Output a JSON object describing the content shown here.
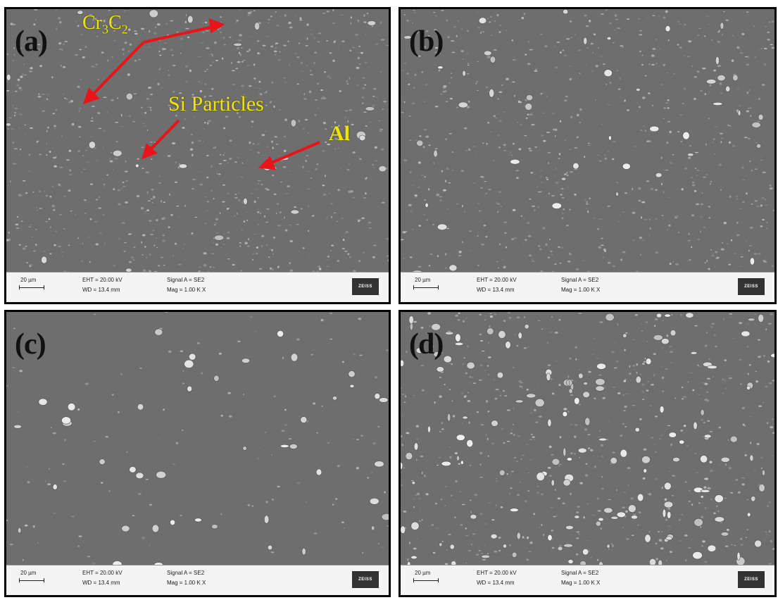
{
  "panels": [
    {
      "id": "a",
      "label": "(a)",
      "annotations": {
        "cr3c2_main": "Cr",
        "cr3c2_sub1": "3",
        "cr3c2_c": "C",
        "cr3c2_sub2": "2",
        "si": "Si Particles",
        "al": "Al"
      },
      "info": {
        "scale": "20 µm",
        "eht": "EHT = 20.00 kV",
        "wd": "WD = 13.4 mm",
        "signal": "Signal A = SE2",
        "mag": "Mag =    1.00 K X",
        "logo": "ZEISS"
      }
    },
    {
      "id": "b",
      "label": "(b)",
      "info": {
        "scale": "20 µm",
        "eht": "EHT = 20.00 kV",
        "wd": "WD = 13.4 mm",
        "signal": "Signal A = SE2",
        "mag": "Mag =    1.00 K X",
        "logo": "ZEISS"
      }
    },
    {
      "id": "c",
      "label": "(c)",
      "info": {
        "scale": "20 µm",
        "eht": "EHT = 20.00 kV",
        "wd": "WD = 13.4 mm",
        "signal": "Signal A = SE2",
        "mag": "Mag =    1.00 K X",
        "logo": "ZEISS"
      }
    },
    {
      "id": "d",
      "label": "(d)",
      "info": {
        "scale": "20 µm",
        "eht": "EHT = 20.00 kV",
        "wd": "WD = 13.4 mm",
        "signal": "Signal A = SE2",
        "mag": "Mag =    1.00 K X",
        "logo": "ZEISS"
      }
    }
  ],
  "colors": {
    "annotation": "#f2e400",
    "arrow": "#e8141a",
    "sem_background": "#6b6b6b"
  }
}
